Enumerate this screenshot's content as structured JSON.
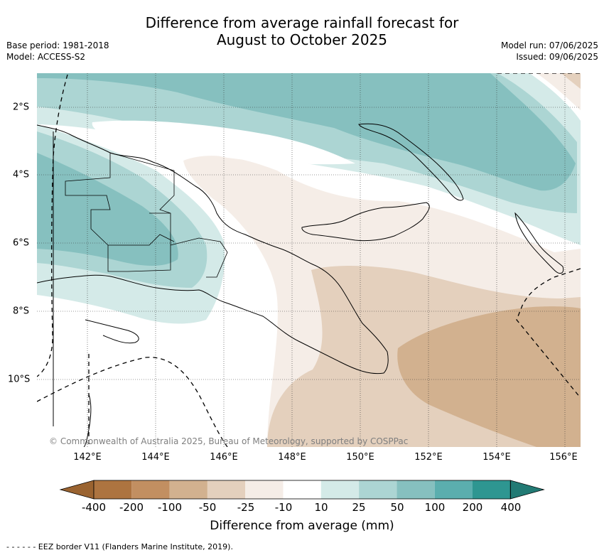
{
  "header": {
    "title_line1": "Difference from average rainfall forecast for",
    "title_line2": "August to October 2025",
    "base_period": "Base period: 1981-2018",
    "model": "Model: ACCESS-S2",
    "model_run": "Model run: 07/06/2025",
    "issued": "Issued: 09/06/2025"
  },
  "map": {
    "x_ticks": [
      "142°E",
      "144°E",
      "146°E",
      "148°E",
      "150°E",
      "152°E",
      "154°E",
      "156°E"
    ],
    "y_ticks": [
      "2°S",
      "4°S",
      "6°S",
      "8°S",
      "10°S"
    ],
    "copyright": "© Commonwealth of Australia 2025, Bureau of Meteorology, supported by COSPPac",
    "colors": {
      "dry_strong": "#d2b18f",
      "dry_moderate": "#e4d0bd",
      "dry_slight": "#f5ede7",
      "neutral": "#ffffff",
      "wet_slight": "#d4eae8",
      "wet_light": "#acd5d3",
      "wet_moderate": "#86c0bf",
      "coast": "#000000"
    }
  },
  "colorbar": {
    "title": "Difference from average (mm)",
    "labels": [
      "-400",
      "-200",
      "-100",
      "-50",
      "-25",
      "-10",
      "10",
      "25",
      "50",
      "100",
      "200",
      "400"
    ],
    "colors": [
      "#ad7440",
      "#c28f61",
      "#d2b18f",
      "#e4d0bd",
      "#f5ede7",
      "#ffffff",
      "#d4eae8",
      "#acd5d3",
      "#86c0bf",
      "#5baeae",
      "#2e9691"
    ],
    "extend_min_color": "#9a6330",
    "extend_max_color": "#227a74"
  },
  "footnote": "- -  - -  - - EEZ border V11 (Flanders Marine Institute, 2019)."
}
